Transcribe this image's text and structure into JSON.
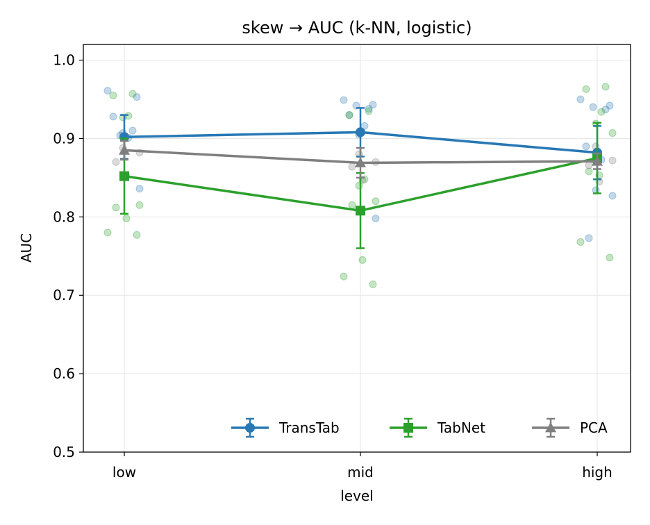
{
  "chart_data": {
    "type": "line",
    "title": "skew → AUC (k-NN, logistic)",
    "xlabel": "level",
    "ylabel": "AUC",
    "categories": [
      "low",
      "mid",
      "high"
    ],
    "ylim": [
      0.5,
      1.02
    ],
    "yticks": [
      "0.5",
      "0.6",
      "0.7",
      "0.8",
      "0.9",
      "1.0"
    ],
    "grid": true,
    "legend_position": "bottom-right",
    "series": [
      {
        "name": "TransTab",
        "color": "#2878b5",
        "marker": "circle",
        "mean": [
          0.902,
          0.908,
          0.882
        ],
        "err": [
          0.028,
          0.031,
          0.034
        ],
        "points": [
          [
            0.961,
            0.953,
            0.904,
            0.91,
            0.928,
            0.901,
            0.907,
            0.836
          ],
          [
            0.949,
            0.943,
            0.942,
            0.938,
            0.93,
            0.916,
            0.905,
            0.798
          ],
          [
            0.95,
            0.942,
            0.94,
            0.937,
            0.89,
            0.873,
            0.834,
            0.827,
            0.773
          ]
        ]
      },
      {
        "name": "TabNet",
        "color": "#2ca02c",
        "marker": "square",
        "mean": [
          0.852,
          0.808,
          0.875
        ],
        "err": [
          0.048,
          0.048,
          0.045
        ],
        "points": [
          [
            0.957,
            0.955,
            0.929,
            0.927,
            0.815,
            0.812,
            0.798,
            0.78,
            0.777
          ],
          [
            0.935,
            0.93,
            0.848,
            0.84,
            0.82,
            0.815,
            0.745,
            0.724,
            0.714
          ],
          [
            0.966,
            0.963,
            0.934,
            0.919,
            0.907,
            0.858,
            0.853,
            0.768,
            0.748
          ]
        ]
      },
      {
        "name": "PCA",
        "color": "#7f7f7f",
        "marker": "triangle",
        "mean": [
          0.885,
          0.869,
          0.871
        ],
        "err": [
          0.012,
          0.019,
          0.01
        ],
        "points": [
          [
            0.888,
            0.882,
            0.87,
            0.852
          ],
          [
            0.88,
            0.87,
            0.864,
            0.847
          ],
          [
            0.89,
            0.872,
            0.866,
            0.845
          ]
        ]
      }
    ]
  }
}
